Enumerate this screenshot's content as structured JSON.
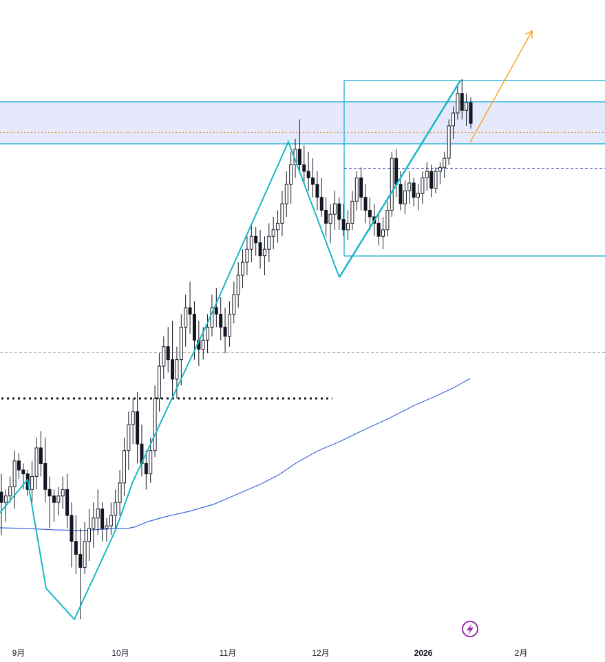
{
  "chart_data": {
    "type": "candlestick",
    "x_axis": {
      "ticks": [
        {
          "label": "9月",
          "bold": false
        },
        {
          "label": "10月",
          "bold": false
        },
        {
          "label": "11月",
          "bold": false
        },
        {
          "label": "12月",
          "bold": false
        },
        {
          "label": "2026",
          "bold": true
        },
        {
          "label": "2月",
          "bold": false
        }
      ]
    },
    "candles": [
      [
        798,
        812,
        765,
        790
      ],
      [
        790,
        800,
        775,
        795
      ],
      [
        795,
        810,
        790,
        802
      ],
      [
        802,
        830,
        785,
        822
      ],
      [
        822,
        828,
        808,
        815
      ],
      [
        815,
        820,
        800,
        812
      ],
      [
        812,
        815,
        795,
        800
      ],
      [
        800,
        822,
        790,
        810
      ],
      [
        810,
        840,
        800,
        832
      ],
      [
        832,
        845,
        810,
        820
      ],
      [
        820,
        840,
        790,
        800
      ],
      [
        800,
        810,
        770,
        795
      ],
      [
        795,
        800,
        775,
        790
      ],
      [
        790,
        802,
        780,
        795
      ],
      [
        795,
        810,
        785,
        800
      ],
      [
        800,
        812,
        770,
        780
      ],
      [
        780,
        790,
        740,
        760
      ],
      [
        760,
        780,
        735,
        750
      ],
      [
        750,
        770,
        700,
        740
      ],
      [
        740,
        775,
        735,
        760
      ],
      [
        760,
        785,
        745,
        770
      ],
      [
        770,
        790,
        755,
        778
      ],
      [
        778,
        800,
        765,
        785
      ],
      [
        785,
        790,
        760,
        770
      ],
      [
        770,
        778,
        760,
        772
      ],
      [
        772,
        790,
        765,
        780
      ],
      [
        780,
        800,
        770,
        790
      ],
      [
        790,
        815,
        780,
        805
      ],
      [
        805,
        840,
        795,
        830
      ],
      [
        830,
        860,
        815,
        850
      ],
      [
        850,
        870,
        835,
        860
      ],
      [
        860,
        875,
        820,
        835
      ],
      [
        835,
        850,
        810,
        820
      ],
      [
        820,
        830,
        800,
        812
      ],
      [
        812,
        840,
        805,
        830
      ],
      [
        830,
        880,
        825,
        870
      ],
      [
        870,
        905,
        860,
        895
      ],
      [
        895,
        918,
        885,
        910
      ],
      [
        910,
        925,
        890,
        900
      ],
      [
        900,
        930,
        870,
        885
      ],
      [
        885,
        910,
        870,
        900
      ],
      [
        900,
        935,
        880,
        925
      ],
      [
        925,
        950,
        910,
        940
      ],
      [
        940,
        960,
        920,
        935
      ],
      [
        935,
        945,
        900,
        915
      ],
      [
        915,
        930,
        895,
        908
      ],
      [
        908,
        925,
        900,
        915
      ],
      [
        915,
        935,
        905,
        925
      ],
      [
        925,
        950,
        918,
        940
      ],
      [
        940,
        955,
        925,
        935
      ],
      [
        935,
        948,
        915,
        925
      ],
      [
        925,
        940,
        905,
        918
      ],
      [
        918,
        945,
        910,
        935
      ],
      [
        935,
        960,
        928,
        950
      ],
      [
        950,
        975,
        940,
        965
      ],
      [
        965,
        985,
        955,
        975
      ],
      [
        975,
        995,
        965,
        985
      ],
      [
        985,
        1005,
        975,
        995
      ],
      [
        995,
        1002,
        980,
        990
      ],
      [
        990,
        1000,
        970,
        980
      ],
      [
        980,
        995,
        965,
        985
      ],
      [
        985,
        1005,
        975,
        995
      ],
      [
        995,
        1010,
        985,
        1000
      ],
      [
        1000,
        1015,
        990,
        1005
      ],
      [
        1005,
        1030,
        995,
        1020
      ],
      [
        1020,
        1045,
        1010,
        1035
      ],
      [
        1035,
        1060,
        1020,
        1050
      ],
      [
        1050,
        1070,
        1040,
        1062
      ],
      [
        1062,
        1085,
        1045,
        1050
      ],
      [
        1050,
        1065,
        1035,
        1045
      ],
      [
        1045,
        1060,
        1030,
        1040
      ],
      [
        1040,
        1055,
        1025,
        1035
      ],
      [
        1035,
        1045,
        1015,
        1025
      ],
      [
        1025,
        1040,
        1010,
        1015
      ],
      [
        1015,
        1025,
        995,
        1005
      ],
      [
        1005,
        1020,
        990,
        1012
      ],
      [
        1012,
        1030,
        1000,
        1020
      ],
      [
        1020,
        1025,
        1000,
        1008
      ],
      [
        1008,
        1020,
        995,
        1000
      ],
      [
        1000,
        1015,
        992,
        1005
      ],
      [
        1005,
        1030,
        1000,
        1022
      ],
      [
        1022,
        1045,
        1015,
        1040
      ],
      [
        1040,
        1048,
        1015,
        1025
      ],
      [
        1025,
        1035,
        1005,
        1015
      ],
      [
        1015,
        1025,
        1000,
        1010
      ],
      [
        1010,
        1020,
        995,
        1005
      ],
      [
        1005,
        1012,
        988,
        995
      ],
      [
        995,
        1010,
        985,
        1000
      ],
      [
        1000,
        1022,
        995,
        1015
      ],
      [
        1015,
        1060,
        1010,
        1055
      ],
      [
        1055,
        1062,
        1025,
        1035
      ],
      [
        1035,
        1045,
        1015,
        1020
      ],
      [
        1020,
        1038,
        1012,
        1030
      ],
      [
        1030,
        1045,
        1020,
        1036
      ],
      [
        1036,
        1040,
        1018,
        1025
      ],
      [
        1025,
        1035,
        1015,
        1028
      ],
      [
        1028,
        1045,
        1020,
        1040
      ],
      [
        1040,
        1052,
        1030,
        1045
      ],
      [
        1045,
        1050,
        1025,
        1032
      ],
      [
        1032,
        1048,
        1028,
        1045
      ],
      [
        1045,
        1052,
        1035,
        1048
      ],
      [
        1048,
        1060,
        1040,
        1055
      ],
      [
        1055,
        1085,
        1050,
        1080
      ],
      [
        1080,
        1095,
        1070,
        1090
      ],
      [
        1090,
        1112,
        1085,
        1105
      ],
      [
        1105,
        1116,
        1085,
        1092
      ],
      [
        1092,
        1105,
        1080,
        1098
      ],
      [
        1098,
        1102,
        1078,
        1082
      ]
    ]
  }
}
